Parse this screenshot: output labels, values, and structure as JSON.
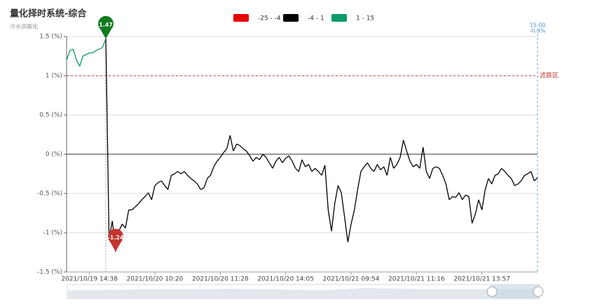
{
  "chart_data": {
    "type": "line",
    "title": "量化择时系统-综合",
    "subtitle": "冷水洞量化",
    "categories": [
      null,
      null,
      null,
      null,
      null,
      null,
      null,
      "2021/10/19 14:38",
      null,
      null,
      null,
      null,
      null,
      null,
      null,
      null,
      null,
      null,
      null,
      null,
      null,
      null,
      null,
      null,
      null,
      null,
      null,
      "2021/10/20 10:20",
      null,
      null,
      null,
      null,
      null,
      null,
      null,
      null,
      null,
      null,
      null,
      null,
      null,
      null,
      null,
      null,
      null,
      null,
      null,
      "2021/10/20 11:28",
      null,
      null,
      null,
      null,
      null,
      null,
      null,
      null,
      null,
      null,
      null,
      null,
      null,
      null,
      null,
      null,
      null,
      null,
      null,
      "2021/10/20 14:05",
      null,
      null,
      null,
      null,
      null,
      null,
      null,
      null,
      null,
      null,
      null,
      null,
      null,
      null,
      null,
      null,
      null,
      null,
      null,
      "2021/10/21 09:54",
      null,
      null,
      null,
      null,
      null,
      null,
      null,
      null,
      null,
      null,
      null,
      null,
      null,
      null,
      null,
      null,
      null,
      null,
      null,
      "2021/10/21 11:16",
      null,
      null,
      null,
      null,
      null,
      null,
      null,
      null,
      null,
      null,
      null,
      null,
      null,
      null,
      null,
      null,
      null,
      null,
      null,
      "2021/10/21 13:57",
      null,
      null,
      null,
      null,
      null,
      null,
      null,
      null,
      null,
      null,
      null,
      null,
      null,
      null,
      null,
      null,
      null
    ],
    "values": [
      1.2,
      1.32,
      1.34,
      1.2,
      1.12,
      1.25,
      1.27,
      1.29,
      1.29,
      1.32,
      1.34,
      1.36,
      1.47,
      -1.07,
      -0.85,
      -1.24,
      -0.98,
      -0.89,
      -0.94,
      -0.71,
      -0.71,
      -0.67,
      -0.63,
      -0.58,
      -0.54,
      -0.49,
      -0.58,
      -0.4,
      -0.36,
      -0.34,
      -0.4,
      -0.45,
      -0.27,
      -0.25,
      -0.22,
      -0.25,
      -0.22,
      -0.27,
      -0.31,
      -0.34,
      -0.38,
      -0.45,
      -0.43,
      -0.31,
      -0.27,
      -0.16,
      -0.09,
      -0.04,
      0.02,
      0.07,
      0.24,
      0.04,
      0.13,
      0.11,
      0.07,
      0.04,
      -0.02,
      -0.09,
      -0.04,
      -0.07,
      0,
      -0.04,
      -0.11,
      -0.18,
      -0.09,
      -0.04,
      -0.11,
      -0.05,
      -0.02,
      -0.09,
      -0.18,
      -0.22,
      -0.07,
      -0.16,
      -0.13,
      -0.22,
      -0.18,
      -0.22,
      -0.27,
      -0.14,
      -0.71,
      -0.98,
      -0.63,
      -0.4,
      -0.49,
      -0.8,
      -1.12,
      -0.89,
      -0.71,
      -0.45,
      -0.22,
      -0.16,
      -0.11,
      -0.18,
      -0.22,
      -0.13,
      -0.2,
      -0.16,
      -0.27,
      -0.04,
      -0.18,
      -0.13,
      -0.04,
      0.18,
      0.04,
      -0.09,
      -0.16,
      -0.13,
      -0.18,
      0.09,
      -0.22,
      -0.31,
      -0.18,
      -0.16,
      -0.18,
      -0.27,
      -0.38,
      -0.58,
      -0.54,
      -0.55,
      -0.49,
      -0.58,
      -0.52,
      -0.54,
      -0.88,
      -0.76,
      -0.58,
      -0.71,
      -0.45,
      -0.31,
      -0.38,
      -0.27,
      -0.25,
      -0.18,
      -0.22,
      -0.27,
      -0.31,
      -0.4,
      -0.38,
      -0.34,
      -0.27,
      -0.25,
      -0.22,
      -0.34,
      -0.3
    ],
    "pieces": [
      {
        "min": -25,
        "max": -4,
        "label": "-25 - -4",
        "color": "#e60000"
      },
      {
        "min": -4,
        "max": 1,
        "label": "-4 - 1",
        "color": "#000000"
      },
      {
        "min": 1,
        "max": 15,
        "label": "1 - 15",
        "color": "#0d9a6a"
      }
    ],
    "ylim": [
      -1.5,
      1.5
    ],
    "yticks": [
      {
        "value": -1.5,
        "label": "-1.5 (%)"
      },
      {
        "value": -1,
        "label": "-1 (%)"
      },
      {
        "value": -0.5,
        "label": "-0.5 (%)"
      },
      {
        "value": 0,
        "label": "0 (%)"
      },
      {
        "value": 0.5,
        "label": "0.5 (%)"
      },
      {
        "value": 1,
        "label": "1 (%)"
      },
      {
        "value": 1.5,
        "label": "1.5 (%)"
      }
    ],
    "grid": true,
    "markline": {
      "value": 1,
      "label": "滤跌区",
      "color": "#c23531"
    },
    "markpoints": [
      {
        "value": 1.47,
        "color": "#117a1f"
      },
      {
        "value": -1.24,
        "color": "#c23531"
      }
    ],
    "last_time_label": "15:00",
    "last_value_label": "-0.3%"
  }
}
